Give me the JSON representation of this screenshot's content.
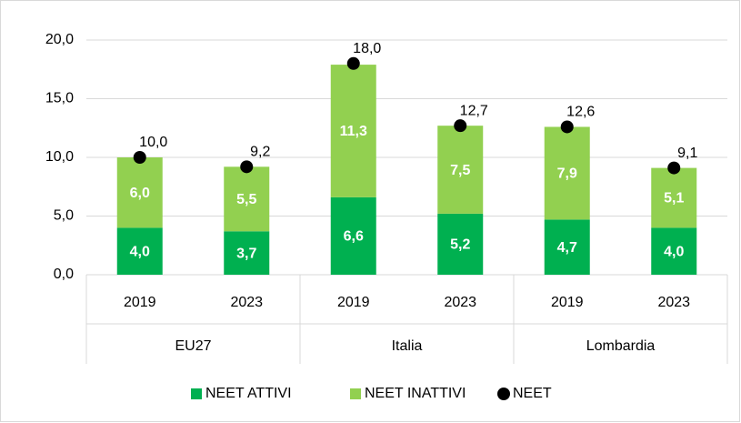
{
  "chart_data": {
    "type": "bar",
    "stacked": true,
    "categories": [
      "2019",
      "2023",
      "2019",
      "2023",
      "2019",
      "2023"
    ],
    "groups": [
      "EU27",
      "Italia",
      "Lombardia"
    ],
    "series": [
      {
        "name": "NEET ATTIVI",
        "color": "#00b050",
        "values": [
          4.0,
          3.7,
          6.6,
          5.2,
          4.7,
          4.0
        ],
        "value_labels": [
          "4,0",
          "3,7",
          "6,6",
          "5,2",
          "4,7",
          "4,0"
        ]
      },
      {
        "name": "NEET INATTIVI",
        "color": "#92d050",
        "values": [
          6.0,
          5.5,
          11.3,
          7.5,
          7.9,
          5.1
        ],
        "value_labels": [
          "6,0",
          "5,5",
          "11,3",
          "7,5",
          "7,9",
          "5,1"
        ]
      },
      {
        "name": "NEET",
        "type": "scatter",
        "color": "#000000",
        "values": [
          10.0,
          9.2,
          18.0,
          12.7,
          12.6,
          9.1
        ],
        "value_labels": [
          "10,0",
          "9,2",
          "18,0",
          "12,7",
          "12,6",
          "9,1"
        ]
      }
    ],
    "ylim": [
      0,
      20
    ],
    "yticks": [
      {
        "value": 0,
        "label": "0,0"
      },
      {
        "value": 5,
        "label": "5,0"
      },
      {
        "value": 10,
        "label": "10,0"
      },
      {
        "value": 15,
        "label": "15,0"
      },
      {
        "value": 20,
        "label": "20,0"
      }
    ],
    "grid": true,
    "legend": "bottom"
  }
}
